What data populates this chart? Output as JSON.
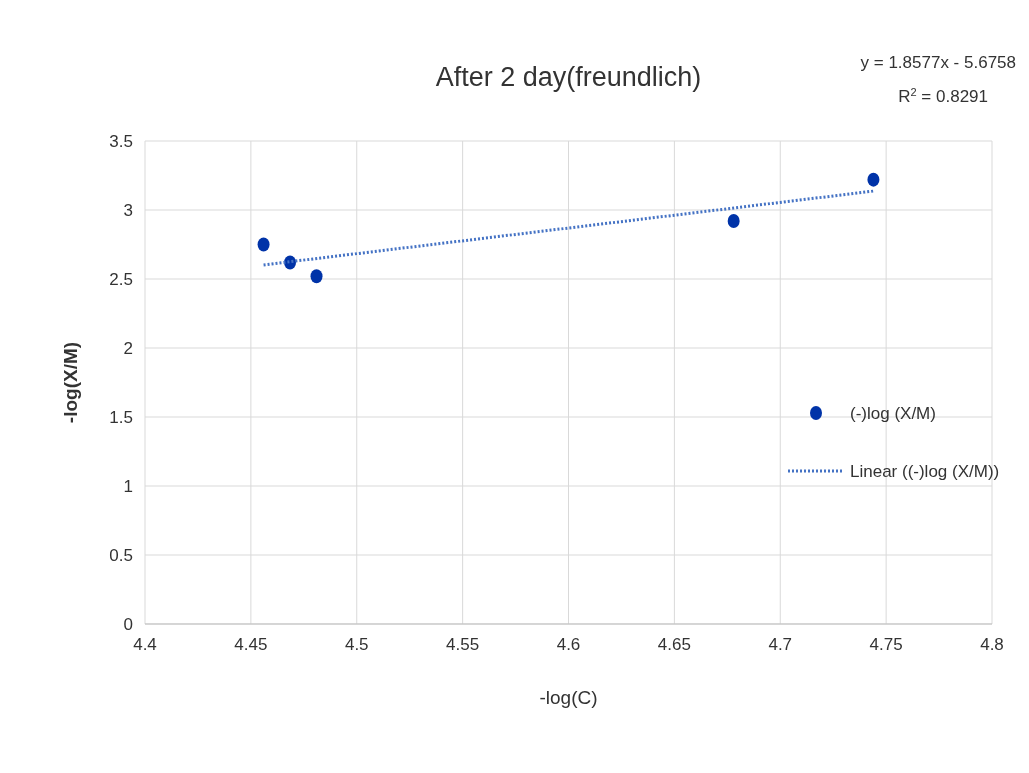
{
  "chart_data": {
    "type": "scatter",
    "title": "After 2 day(freundlich)",
    "xlabel": "-log(C)",
    "ylabel": "-log(X/M)",
    "annotations": [
      "y = 1.8577x - 5.6758",
      "R$^{2}$ = 0.8291"
    ],
    "xlim": [
      4.4,
      4.8
    ],
    "xticks": [
      4.4,
      4.45,
      4.5,
      4.55,
      4.6,
      4.65,
      4.7,
      4.75,
      4.8
    ],
    "ylim": [
      0,
      3.5
    ],
    "yticks": [
      0,
      0.5,
      1,
      1.5,
      2,
      2.5,
      3,
      3.5
    ],
    "grid": true,
    "legend": "right",
    "marker": "circle",
    "series": [
      {
        "name": "(-)log (X/M)",
        "color": "#0033a8",
        "x": [
          4.456,
          4.4685,
          4.481,
          4.678,
          4.744
        ],
        "values": [
          2.75,
          2.62,
          2.52,
          2.92,
          3.22
        ]
      },
      {
        "name": "Linear ((-)log (X/M))",
        "type": "line",
        "line_style": "dotted",
        "marker": "none",
        "color": "#4472c4",
        "x": [
          4.456,
          4.744
        ],
        "values": [
          2.602,
          3.137
        ]
      }
    ]
  }
}
